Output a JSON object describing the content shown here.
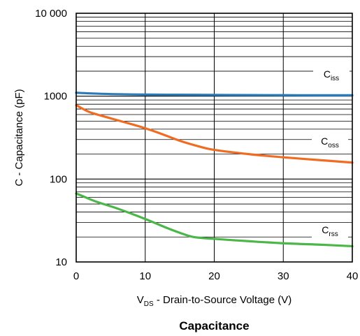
{
  "caption": "Capacitance",
  "chart_data": {
    "type": "line",
    "x_scale": "linear",
    "y_scale": "log",
    "xlim": [
      0,
      40
    ],
    "ylim": [
      10,
      10000
    ],
    "x_ticks": [
      0,
      10,
      20,
      30,
      40
    ],
    "x_tick_labels": [
      "0",
      "10",
      "20",
      "30",
      "40"
    ],
    "y_ticks": [
      10,
      100,
      1000,
      10000
    ],
    "y_tick_labels": [
      "10",
      "100",
      "1000",
      "10 000"
    ],
    "grid": true,
    "xlabel_main": "V",
    "xlabel_sub": "DS",
    "xlabel_rest": " - Drain-to-Source Voltage (V)",
    "ylabel": "C - Capacitance (pF)",
    "colors": {
      "Ciss": "#2a7ab8",
      "Coss": "#ef6c22",
      "Crss": "#4bb748",
      "grid": "#000000"
    },
    "series": [
      {
        "name": "Ciss",
        "label_main": "C",
        "label_sub": "iss",
        "x": [
          0,
          2,
          5,
          10,
          15,
          20,
          25,
          30,
          35,
          40
        ],
        "values": [
          1100,
          1080,
          1060,
          1045,
          1040,
          1035,
          1030,
          1028,
          1025,
          1025
        ]
      },
      {
        "name": "Coss",
        "label_main": "C",
        "label_sub": "oss",
        "x": [
          0,
          2,
          5,
          8,
          10,
          12,
          15,
          18,
          20,
          25,
          30,
          35,
          40
        ],
        "values": [
          780,
          640,
          540,
          460,
          410,
          360,
          290,
          245,
          225,
          200,
          183,
          170,
          158
        ]
      },
      {
        "name": "Crss",
        "label_main": "C",
        "label_sub": "rss",
        "x": [
          0,
          1,
          3,
          6,
          10,
          13,
          15,
          17,
          20,
          25,
          30,
          35,
          40
        ],
        "values": [
          67,
          62,
          53,
          44,
          33,
          26,
          22.5,
          20,
          19,
          17.8,
          16.8,
          16.2,
          15.5
        ]
      }
    ]
  }
}
